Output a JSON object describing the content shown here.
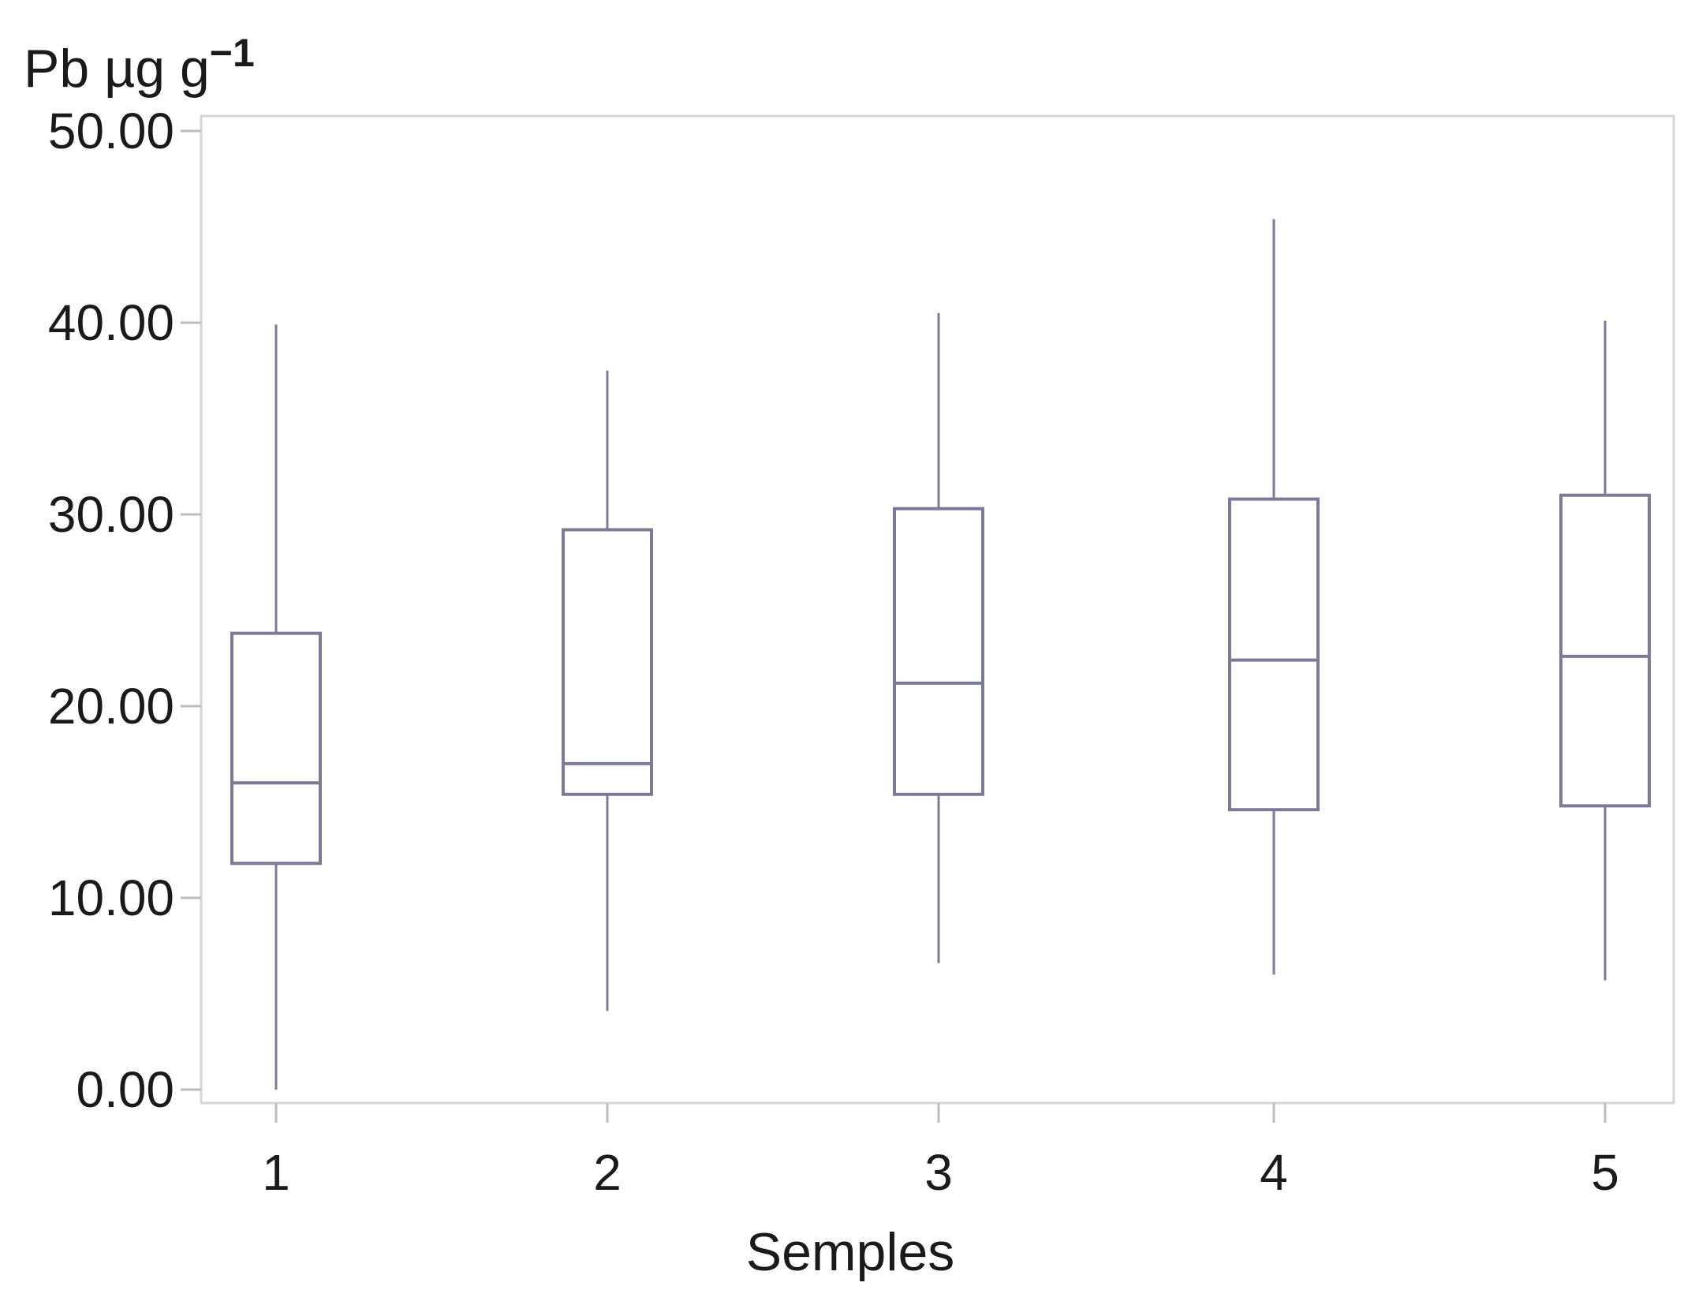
{
  "chart_data": {
    "type": "boxplot",
    "title": "",
    "ylabel": "Pb µg g",
    "ylabel_superscript": "−1",
    "xlabel": "Semples",
    "ylim": [
      0,
      50
    ],
    "yticks": [
      0,
      10,
      20,
      30,
      40,
      50
    ],
    "ytick_labels": [
      "0.00",
      "10.00",
      "20.00",
      "30.00",
      "40.00",
      "50.00"
    ],
    "grid": false,
    "categories": [
      "1",
      "2",
      "3",
      "4",
      "5"
    ],
    "boxes": [
      {
        "category": "1",
        "min": 0.0,
        "q1": 11.8,
        "median": 16.0,
        "q3": 23.8,
        "max": 39.9
      },
      {
        "category": "2",
        "min": 4.1,
        "q1": 15.4,
        "median": 17.0,
        "q3": 29.2,
        "max": 37.5
      },
      {
        "category": "3",
        "min": 6.6,
        "q1": 15.4,
        "median": 21.2,
        "q3": 30.3,
        "max": 40.5
      },
      {
        "category": "4",
        "min": 6.0,
        "q1": 14.6,
        "median": 22.4,
        "q3": 30.8,
        "max": 45.4
      },
      {
        "category": "5",
        "min": 5.7,
        "q1": 14.8,
        "median": 22.6,
        "q3": 31.0,
        "max": 40.1
      }
    ],
    "colors": {
      "box_stroke": "#7b7b98",
      "frame": "#d6d6d6",
      "axis": "#bdbdbd",
      "text": "#1a1a1a"
    }
  }
}
